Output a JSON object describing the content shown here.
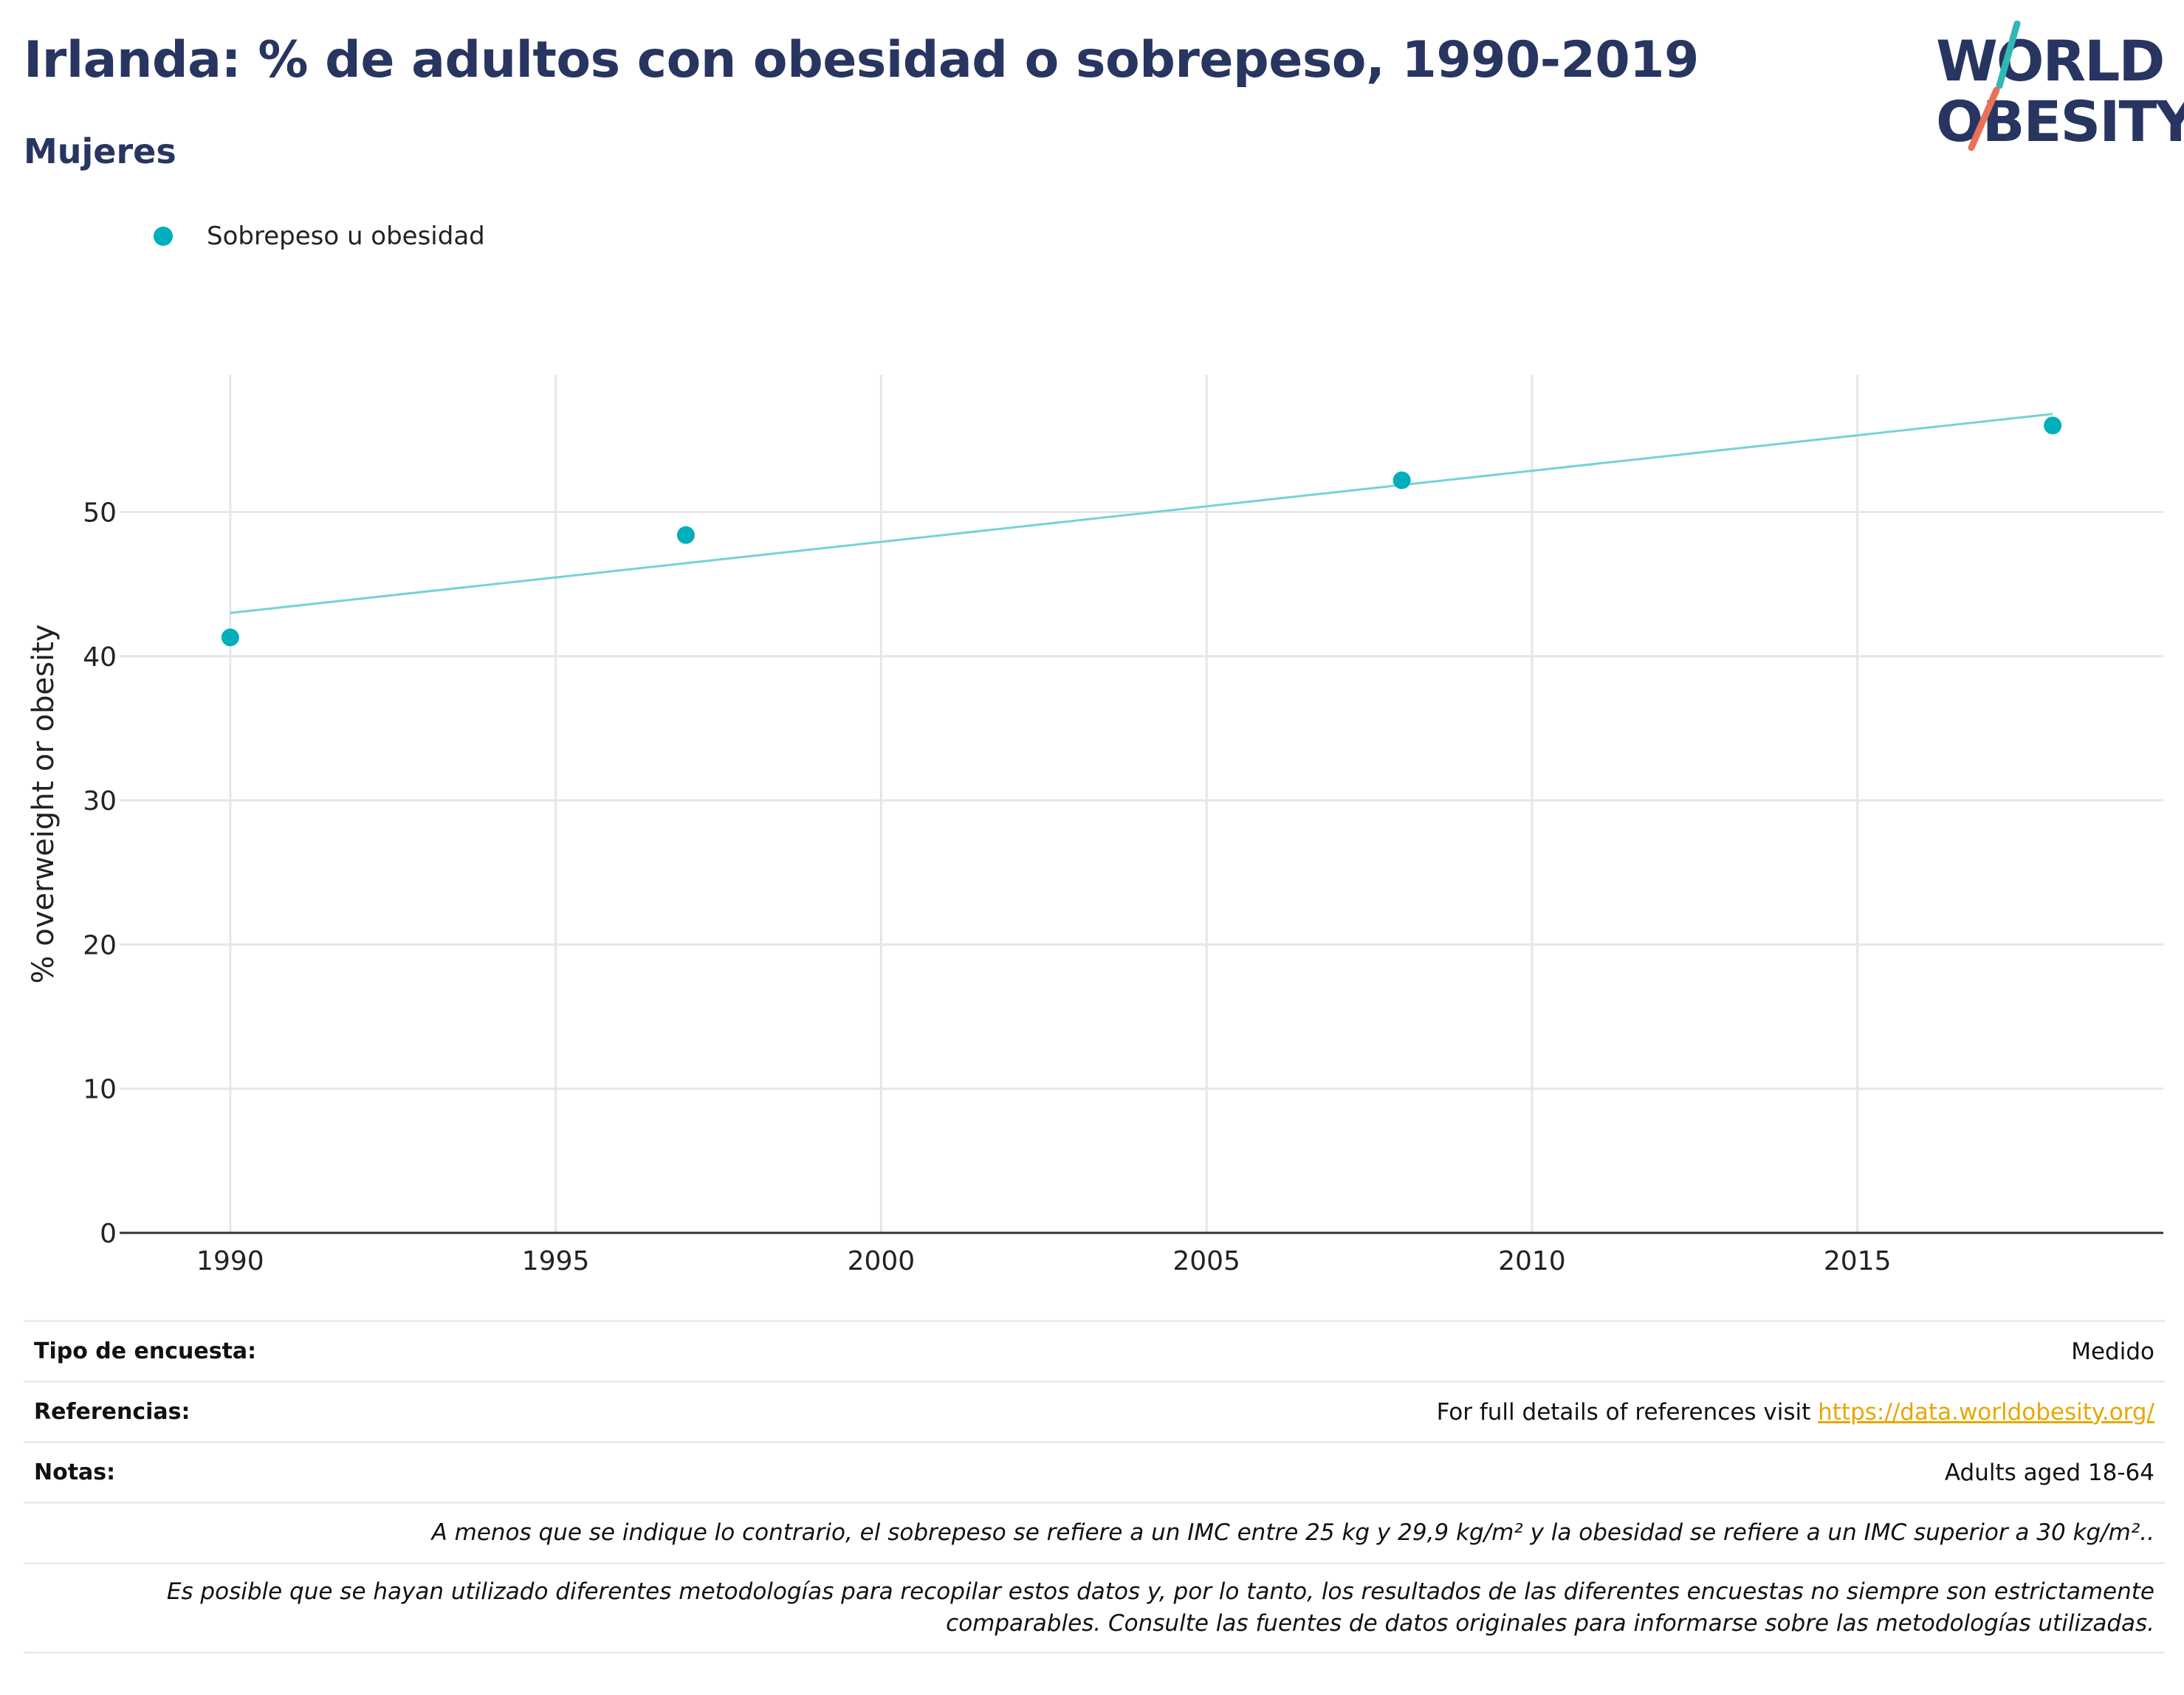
{
  "header": {
    "title": "Irlanda: % de adultos con obesidad o sobrepeso, 1990-2019",
    "subtitle": "Mujeres"
  },
  "logo": {
    "line1": "WORLD",
    "line2": "OBESITY",
    "accent_teal": "#2FB9B5",
    "accent_coral": "#E8715A"
  },
  "legend": {
    "label": "Sobrepeso u obesidad",
    "color": "#00AFBB"
  },
  "chart_data": {
    "type": "scatter",
    "ylabel": "% overweight or obesity",
    "xlabel": "",
    "xlim": [
      1988.3,
      2019.7
    ],
    "ylim": [
      0,
      59.5
    ],
    "x_ticks": [
      1990,
      1995,
      2000,
      2005,
      2010,
      2015
    ],
    "y_ticks": [
      0,
      10,
      20,
      30,
      40,
      50
    ],
    "grid": true,
    "series": [
      {
        "name": "Sobrepeso u obesidad",
        "color": "#00AFBB",
        "x": [
          1990,
          1997,
          2008,
          2018
        ],
        "y": [
          41.3,
          48.4,
          52.2,
          56.0
        ]
      }
    ],
    "trendline": {
      "color": "#74D3D8",
      "x": [
        1990,
        2018
      ],
      "y": [
        43.0,
        56.8
      ]
    }
  },
  "info": {
    "survey_type_label": "Tipo de encuesta:",
    "survey_type_value": "Medido",
    "references_label": "Referencias:",
    "references_text": "For full details of references visit ",
    "references_link": "https://data.worldobesity.org/",
    "notes_label": "Notas:",
    "notes_value": "Adults aged 18-64",
    "note_bmi": "A menos que se indique lo contrario, el sobrepeso se refiere a un IMC entre 25 kg y 29,9 kg/m² y la obesidad se refiere a un IMC superior a 30 kg/m²..",
    "note_methods_line1": "Es posible que se hayan utilizado diferentes metodologías para recopilar estos datos y, por lo tanto, los resultados de las diferentes encuestas no siempre son estrictamente",
    "note_methods_line2": "comparables. Consulte las fuentes de datos originales para informarse sobre las metodologías utilizadas."
  }
}
